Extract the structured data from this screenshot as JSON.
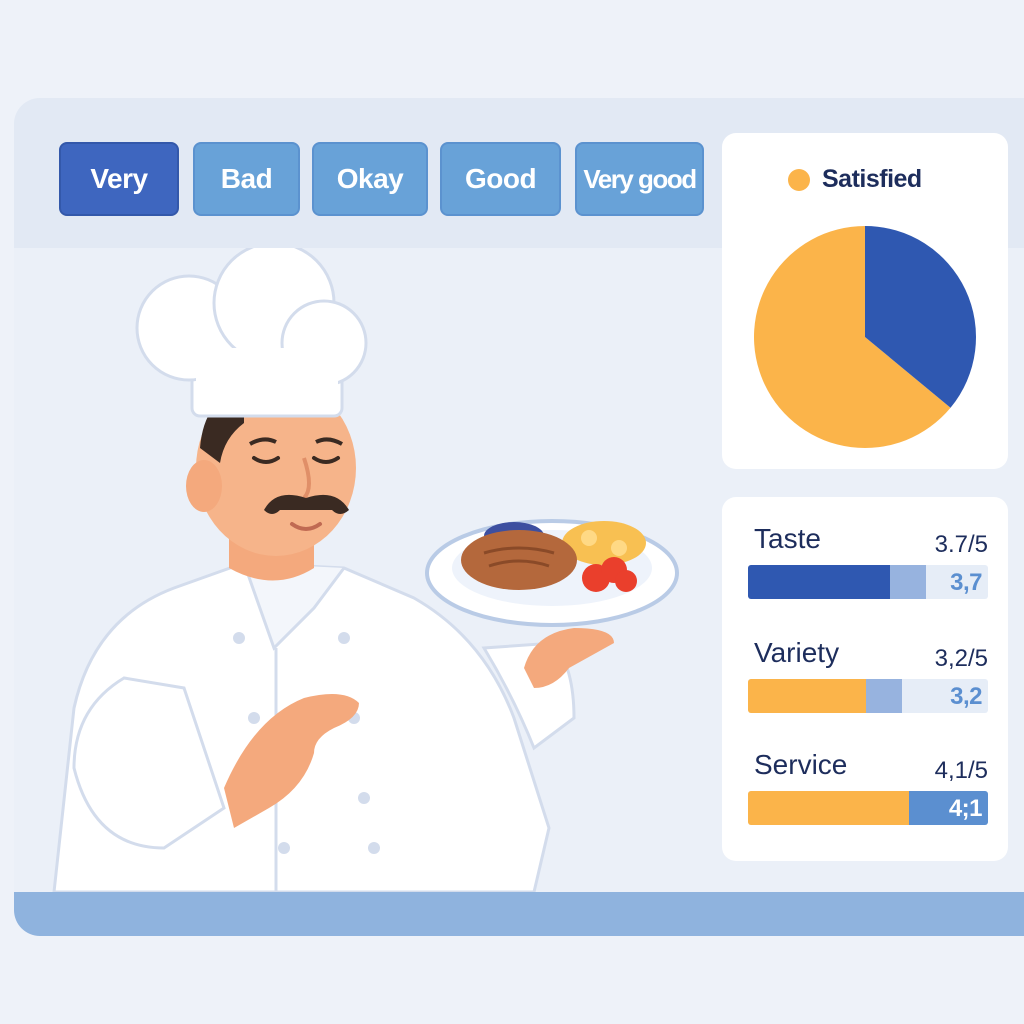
{
  "rating_buttons": [
    {
      "label": "Very",
      "selected": true
    },
    {
      "label": "Bad",
      "selected": false
    },
    {
      "label": "Okay",
      "selected": false
    },
    {
      "label": "Good",
      "selected": false
    },
    {
      "label": "Very good",
      "selected": false
    }
  ],
  "satisfaction_chart": {
    "legend_label": "Satisfied",
    "colors": {
      "satisfied": "#fbb44a",
      "other": "#2f58b1"
    },
    "chart_data": {
      "type": "pie",
      "slices": [
        {
          "name": "Satisfied",
          "value": 64
        },
        {
          "name": "",
          "value": 36
        }
      ],
      "legend_placement": "top-left"
    }
  },
  "metrics": [
    {
      "label": "Taste",
      "score": "3.7/5",
      "value_text": "3,7",
      "value": 3.7,
      "max": 5,
      "main_color": "#2f58b1",
      "value_color": "#5b8fd0"
    },
    {
      "label": "Variety",
      "score": "3,2/5",
      "value_text": "3,2",
      "value": 3.2,
      "max": 5,
      "main_color": "#fbb44a",
      "value_color": "#5b8fd0"
    },
    {
      "label": "Service",
      "score": "4,1/5",
      "value_text": "4;1",
      "value": 4.1,
      "max": 5,
      "main_color": "#fbb44a",
      "value_color": "#ffffff"
    }
  ]
}
